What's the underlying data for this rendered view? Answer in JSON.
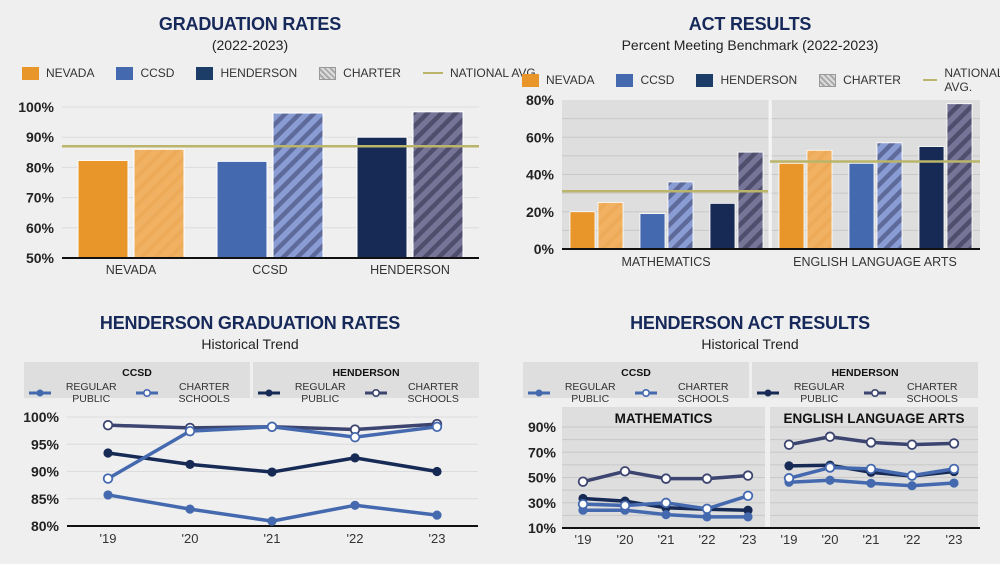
{
  "colors": {
    "nevada": "#E8952A",
    "nevada_charter": "#F0B262",
    "ccsd": "#4569AF",
    "ccsd_charter": "#8A9CD4",
    "ccsd_charter_stripe": "#5E6A99",
    "henderson": "#172A55",
    "henderson_charter": "#767598",
    "henderson_charter_stripe": "#4F4E6C",
    "national_avg": "#BAB56A",
    "title": "#17295A",
    "trend_ccsd": "#4569AF",
    "trend_henderson_regular": "#172A55",
    "trend_henderson_charter": "#3C4470"
  },
  "legend_bar": {
    "items": [
      {
        "key": "nevada",
        "label": "NEVADA"
      },
      {
        "key": "ccsd",
        "label": "CCSD"
      },
      {
        "key": "henderson",
        "label": "HENDERSON"
      },
      {
        "key": "charter",
        "label": "CHARTER"
      },
      {
        "key": "national",
        "label": "NATIONAL AVG."
      }
    ]
  },
  "legend_trend": {
    "groups": [
      {
        "heading": "CCSD",
        "regular": "REGULAR PUBLIC",
        "charter": "CHARTER SCHOOLS"
      },
      {
        "heading": "HENDERSON",
        "regular": "REGULAR PUBLIC",
        "charter": "CHARTER SCHOOLS"
      }
    ]
  },
  "chart_data": [
    {
      "id": "graduation-rates",
      "type": "bar",
      "title": "GRADUATION RATES",
      "subtitle": "(2022-2023)",
      "categories": [
        "NEVADA",
        "CCSD",
        "HENDERSON"
      ],
      "series": [
        {
          "name": "Regular",
          "values": [
            82.3,
            82,
            90
          ]
        },
        {
          "name": "Charter",
          "values": [
            86,
            98,
            98.4
          ]
        }
      ],
      "national_avg": 87,
      "ylim": [
        50,
        100
      ],
      "yticks": [
        50,
        60,
        70,
        80,
        90,
        100
      ],
      "ytick_labels": [
        "50%",
        "60%",
        "70%",
        "80%",
        "90%",
        "100%"
      ],
      "grid": true
    },
    {
      "id": "act-results",
      "type": "bar",
      "title": "ACT RESULTS",
      "subtitle": "Percent Meeting Benchmark (2022-2023)",
      "categories": [
        "MATHEMATICS",
        "ENGLISH LANGUAGE ARTS"
      ],
      "groups": [
        "NEVADA",
        "CCSD",
        "HENDERSON"
      ],
      "series": [
        {
          "name": "Nevada",
          "values": [
            20,
            46
          ]
        },
        {
          "name": "Nevada Charter",
          "values": [
            25,
            53
          ]
        },
        {
          "name": "CCSD",
          "values": [
            19,
            46
          ]
        },
        {
          "name": "CCSD Charter",
          "values": [
            36,
            57
          ]
        },
        {
          "name": "Henderson",
          "values": [
            24.5,
            55
          ]
        },
        {
          "name": "Henderson Charter",
          "values": [
            52,
            78
          ]
        }
      ],
      "national_avg": [
        31,
        47
      ],
      "ylim": [
        0,
        80
      ],
      "yticks": [
        0,
        20,
        40,
        60,
        80
      ],
      "ytick_labels": [
        "0%",
        "20%",
        "40%",
        "60%",
        "80%"
      ],
      "grid": true
    },
    {
      "id": "henderson-graduation-trend",
      "type": "line",
      "title": "HENDERSON GRADUATION RATES",
      "subtitle": "Historical Trend",
      "x": [
        "'19",
        "'20",
        "'21",
        "'22",
        "'23"
      ],
      "series": [
        {
          "name": "CCSD Regular Public",
          "values": [
            85.7,
            83.1,
            80.9,
            83.8,
            82.0
          ]
        },
        {
          "name": "CCSD Charter Schools",
          "values": [
            88.7,
            97.4,
            98.2,
            96.3,
            98.2
          ]
        },
        {
          "name": "Henderson Regular Public",
          "values": [
            93.4,
            91.3,
            89.9,
            92.5,
            90.0
          ]
        },
        {
          "name": "Henderson Charter Schools",
          "values": [
            98.5,
            98.0,
            98.2,
            97.7,
            98.7
          ]
        }
      ],
      "ylim": [
        80,
        100
      ],
      "yticks": [
        80,
        85,
        90,
        95,
        100
      ],
      "ytick_labels": [
        "80%",
        "85%",
        "90%",
        "95%",
        "100%"
      ],
      "grid": true
    },
    {
      "id": "henderson-act-trend",
      "type": "line",
      "title": "HENDERSON ACT RESULTS",
      "subtitle": "Historical Trend",
      "panels": [
        {
          "name": "MATHEMATICS",
          "x": [
            "'19",
            "'20",
            "'21",
            "'22",
            "'23"
          ],
          "series": [
            {
              "name": "CCSD Regular Public",
              "values": [
                24.1,
                24.1,
                20.6,
                18.8,
                18.8
              ]
            },
            {
              "name": "CCSD Charter Schools",
              "values": [
                28.9,
                27.8,
                29.9,
                25.2,
                35.5
              ]
            },
            {
              "name": "Henderson Regular Public",
              "values": [
                33.4,
                31.3,
                26.0,
                24.9,
                24.1
              ]
            },
            {
              "name": "Henderson Charter Schools",
              "values": [
                46.7,
                54.9,
                49.1,
                49.1,
                51.5
              ]
            }
          ]
        },
        {
          "name": "ENGLISH LANGUAGE ARTS",
          "x": [
            "'19",
            "'20",
            "'21",
            "'22",
            "'23"
          ],
          "series": [
            {
              "name": "CCSD Regular Public",
              "values": [
                46.2,
                47.8,
                45.4,
                43.5,
                45.6
              ]
            },
            {
              "name": "CCSD Charter Schools",
              "values": [
                49.4,
                57.9,
                56.8,
                51.5,
                56.8
              ]
            },
            {
              "name": "Henderson Regular Public",
              "values": [
                59.2,
                59.7,
                54.1,
                51.2,
                54.7
              ]
            },
            {
              "name": "Henderson Charter Schools",
              "values": [
                76.0,
                82.3,
                77.8,
                76.0,
                77.0
              ]
            }
          ]
        }
      ],
      "ylim": [
        10,
        90
      ],
      "yticks": [
        10,
        30,
        50,
        70,
        90
      ],
      "ytick_labels": [
        "10%",
        "30%",
        "50%",
        "70%",
        "90%"
      ],
      "grid": true
    }
  ]
}
